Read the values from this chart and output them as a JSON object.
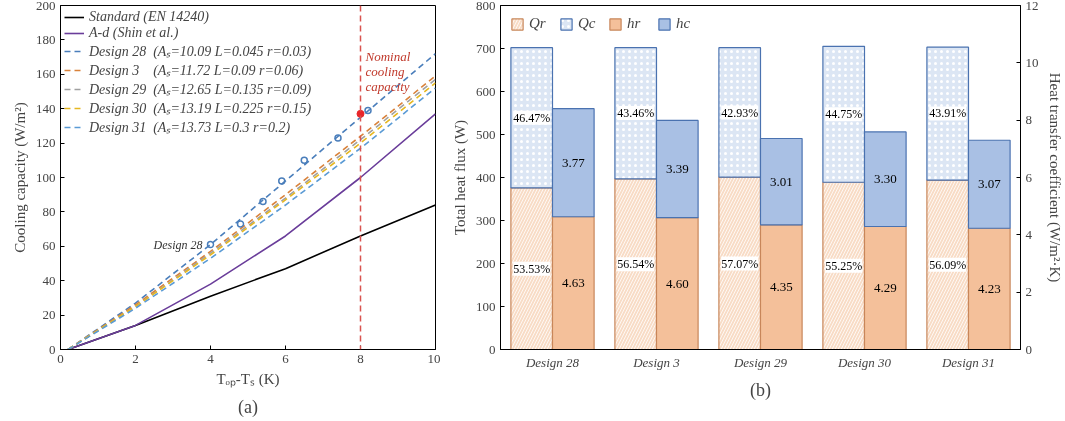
{
  "chart_data": [
    {
      "type": "line",
      "xlabel": "Tₒₚ-Tₛ (K)",
      "ylabel": "Cooling capacity (W/m²)",
      "xlim": [
        0,
        10
      ],
      "ylim": [
        0,
        200
      ],
      "xticks": [
        0,
        2,
        4,
        6,
        8,
        10
      ],
      "yticks": [
        0,
        20,
        40,
        60,
        80,
        100,
        120,
        140,
        160,
        180,
        200
      ],
      "grid": false,
      "legend": "top left",
      "x": [
        0.2,
        2,
        4,
        6,
        8,
        10
      ],
      "series": [
        {
          "name": "Standard (EN 14240)",
          "color": "#000000",
          "line_style": "solid",
          "values": [
            0,
            14,
            31,
            47,
            66,
            84
          ]
        },
        {
          "name": "A-d (Shin et al.)",
          "color": "#6a3d9a",
          "line_style": "solid",
          "values": [
            0,
            14,
            38,
            66,
            100,
            137
          ]
        },
        {
          "name": "Design 28  (Aₛ=10.09 L=0.045 r=0.03)",
          "color": "#4a7ebb",
          "line_style": "dashed",
          "values": [
            0,
            27,
            61,
            98,
            135,
            172
          ]
        },
        {
          "name": "Design 3    (Aₛ=11.72 L=0.09 r=0.06)",
          "color": "#d9823b",
          "line_style": "dashed",
          "values": [
            0,
            26,
            57,
            90,
            124,
            159
          ]
        },
        {
          "name": "Design 29  (Aₛ=12.65 L=0.135 r=0.09)",
          "color": "#a0a0a0",
          "line_style": "dashed",
          "values": [
            0,
            25,
            56,
            88,
            122,
            157
          ]
        },
        {
          "name": "Design 30  (Aₛ=13.19 L=0.225 r=0.15)",
          "color": "#e6b820",
          "line_style": "dashed",
          "values": [
            0,
            25,
            55,
            87,
            120,
            155
          ]
        },
        {
          "name": "Design 31  (Aₛ=13.73 L=0.3 r=0.2)",
          "color": "#5b9bd5",
          "line_style": "dashed",
          "values": [
            0,
            24,
            53,
            84,
            117,
            152
          ]
        },
        {
          "type": "scatter",
          "marker": "circle",
          "color": "#4a7ebb",
          "x": [
            4,
            4.8,
            5.4,
            5.9,
            6.5,
            7.4,
            8.2
          ],
          "values": [
            61,
            73,
            86,
            98,
            110,
            123,
            139
          ]
        }
      ],
      "ref_lines": [
        {
          "axis": "x",
          "value": 8,
          "color": "#d9534f",
          "line_style": "dashed"
        }
      ],
      "annotations": [
        {
          "text": "Nominal cooling capacity",
          "x": 8,
          "y": 137
        },
        {
          "text": "Design 28",
          "x": 4,
          "y": 61
        },
        "(a)"
      ]
    },
    {
      "type": "bar",
      "stacked": true,
      "ylabel": "Total heat flux (W)",
      "y2label": "Heat transfer coefficient (W/m²·K)",
      "ylim": [
        0,
        800
      ],
      "yticks": [
        0,
        100,
        200,
        300,
        400,
        500,
        600,
        700,
        800
      ],
      "y2lim": [
        0,
        12
      ],
      "y2ticks": [
        0,
        2,
        4,
        6,
        8,
        10,
        12
      ],
      "grid": false,
      "legend": "top left",
      "categories": [
        "Design 28",
        "Design 3",
        "Design 29",
        "Design 30",
        "Design 31"
      ],
      "series": [
        {
          "name": "Qr",
          "color": "#f8dcc6",
          "values": [
            376,
            397,
            401,
            389,
            394
          ]
        },
        {
          "name": "Qc",
          "color": "#dce6f4",
          "values": [
            326,
            305,
            301,
            316,
            309
          ]
        },
        {
          "name": "hr",
          "color": "#f4c09a",
          "axis": "y2",
          "values": [
            4.63,
            4.6,
            4.35,
            4.29,
            4.23
          ],
          "value_labels": [
            "4.63",
            "4.60",
            "4.35",
            "4.29",
            "4.23"
          ]
        },
        {
          "name": "hc",
          "color": "#a9c0e4",
          "axis": "y2",
          "values": [
            3.77,
            3.39,
            3.01,
            3.3,
            3.07
          ],
          "value_labels": [
            "3.77",
            "3.39",
            "3.01",
            "3.30",
            "3.07"
          ]
        }
      ],
      "annotations": [
        {
          "text": "53.53%",
          "x": "Design 28",
          "y": 188
        },
        {
          "text": "56.54%",
          "x": "Design 3",
          "y": 198
        },
        {
          "text": "57.07%",
          "x": "Design 29",
          "y": 200
        },
        {
          "text": "55.25%",
          "x": "Design 30",
          "y": 195
        },
        {
          "text": "56.09%",
          "x": "Design 31",
          "y": 197
        },
        {
          "text": "46.47%",
          "x": "Design 28",
          "y": 539
        },
        {
          "text": "43.46%",
          "x": "Design 3",
          "y": 550
        },
        {
          "text": "42.93%",
          "x": "Design 29",
          "y": 551
        },
        {
          "text": "44.75%",
          "x": "Design 30",
          "y": 547
        },
        {
          "text": "43.91%",
          "x": "Design 31",
          "y": 549
        },
        "(b)"
      ]
    }
  ]
}
